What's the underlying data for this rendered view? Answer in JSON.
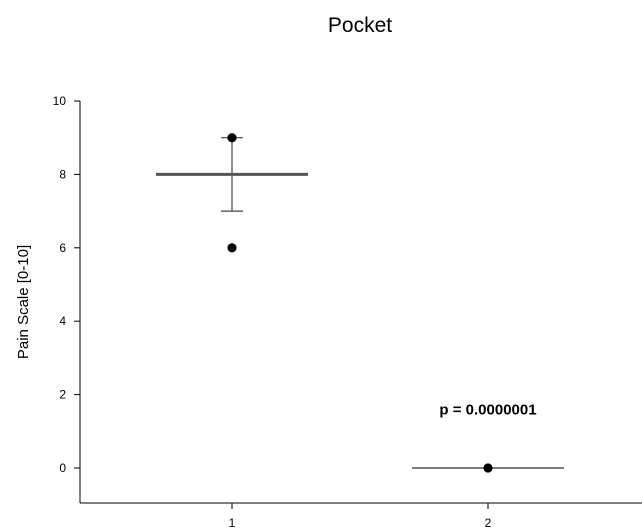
{
  "chart_data": {
    "type": "scatter",
    "title": "Pocket",
    "xlabel": "",
    "ylabel": "Pain Scale [0-10]",
    "ylim": [
      -1,
      10
    ],
    "y_ticks": [
      0,
      2,
      4,
      6,
      8,
      10
    ],
    "x_ticks": [
      1,
      2
    ],
    "grid": false,
    "groups": [
      {
        "x": 1,
        "points": [
          9,
          6
        ],
        "mean": 8,
        "error_low": 7,
        "error_high": 9
      },
      {
        "x": 2,
        "points": [
          0
        ],
        "mean": 0,
        "error_low": 0,
        "error_high": 0
      }
    ],
    "annotations": [
      {
        "text": "p = 0.0000001",
        "x": 2,
        "y": 1.6
      }
    ],
    "colors": {
      "points": "#000000",
      "mean_line": "#555555",
      "error_bar": "#444444",
      "axis": "#000000"
    }
  }
}
